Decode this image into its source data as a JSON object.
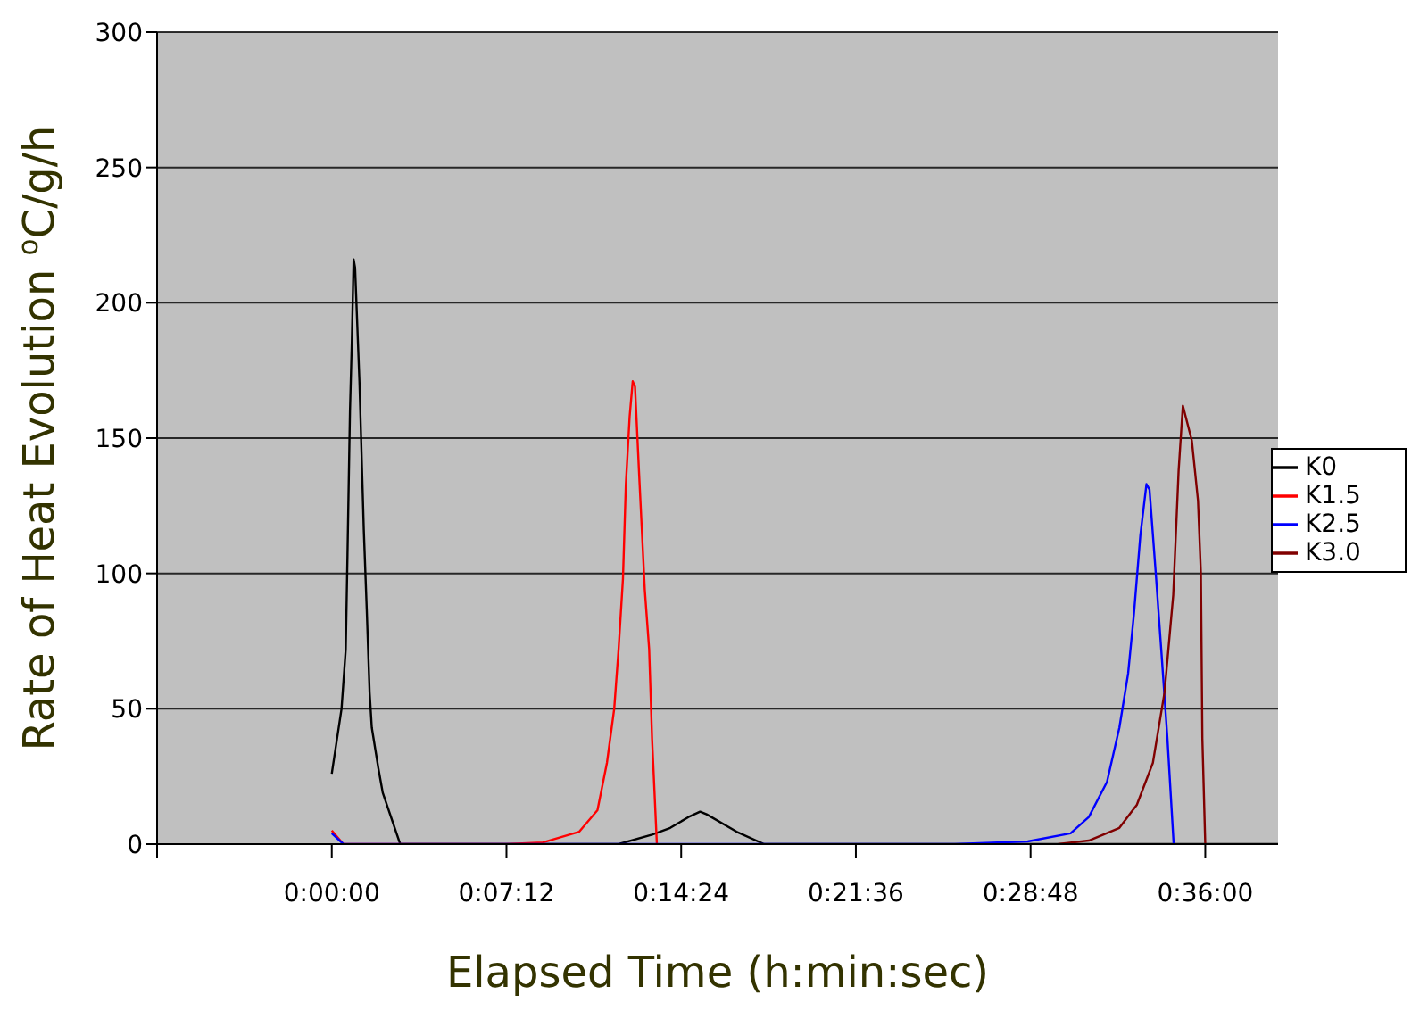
{
  "chart_data": {
    "type": "line",
    "xlabel": "Elapsed Time (h:min:sec)",
    "ylabel": "Rate of Heat Evolution $^{o}$C/g/h",
    "xlim": [
      -0.12,
      0.65
    ],
    "xticks": [
      {
        "value": -0.12,
        "label": null
      },
      {
        "value": 0,
        "label": "0:00:00"
      },
      {
        "value": 0.12,
        "label": "0:07:12"
      },
      {
        "value": 0.24,
        "label": "0:14:24"
      },
      {
        "value": 0.36,
        "label": "0:21:36"
      },
      {
        "value": 0.48,
        "label": "0:28:48"
      },
      {
        "value": 0.6,
        "label": "0:36:00"
      }
    ],
    "ylim": [
      0,
      300
    ],
    "yticks": [
      0,
      50,
      100,
      150,
      200,
      250,
      300
    ],
    "grid": "y",
    "legend": "right",
    "marker": "none",
    "line_style": "solid",
    "series": [
      {
        "name": "K0",
        "color": "#000000",
        "x": [
          0,
          0.0067,
          0.0096,
          0.0108,
          0.0125,
          0.0138,
          0.015,
          0.016,
          0.019,
          0.022,
          0.024,
          0.026,
          0.0275,
          0.032,
          0.035,
          0.047,
          0.197,
          0.22,
          0.2325,
          0.245,
          0.253,
          0.2575,
          0.278,
          0.297,
          0.65
        ],
        "values": [
          26,
          50,
          72,
          107,
          160,
          186,
          216,
          213,
          171,
          116,
          87,
          56,
          43,
          28,
          19,
          0,
          0,
          3.5,
          6,
          10,
          12,
          11,
          4.6,
          0,
          0
        ]
      },
      {
        "name": "K1.5",
        "color": "#ff0000",
        "x": [
          0,
          0.008,
          0.12,
          0.145,
          0.17,
          0.1825,
          0.189,
          0.194,
          0.197,
          0.2,
          0.202,
          0.2046,
          0.2067,
          0.2083,
          0.211,
          0.215,
          0.218,
          0.22,
          0.2233
        ],
        "values": [
          5,
          0,
          0,
          0.6,
          4.6,
          12.5,
          30,
          50,
          72,
          98,
          133,
          158,
          171,
          169,
          138,
          94,
          72,
          39,
          0
        ]
      },
      {
        "name": "K2.5",
        "color": "#0000ff",
        "x": [
          0,
          0.008,
          0.428,
          0.478,
          0.5075,
          0.52,
          0.5325,
          0.541,
          0.547,
          0.551,
          0.5554,
          0.5596,
          0.5617,
          0.566,
          0.57,
          0.574,
          0.5783
        ],
        "values": [
          4,
          0,
          0,
          1,
          4,
          10,
          23,
          43,
          63,
          85,
          114,
          133,
          131,
          100,
          70,
          39,
          0
        ]
      },
      {
        "name": "K3.0",
        "color": "#800000",
        "x": [
          0.499,
          0.52,
          0.541,
          0.553,
          0.564,
          0.572,
          0.578,
          0.5817,
          0.5846,
          0.5908,
          0.595,
          0.597,
          0.598,
          0.6
        ],
        "values": [
          0,
          1.3,
          6,
          14.5,
          30,
          56,
          92,
          138,
          162,
          149,
          127,
          100,
          39,
          0
        ]
      }
    ]
  }
}
